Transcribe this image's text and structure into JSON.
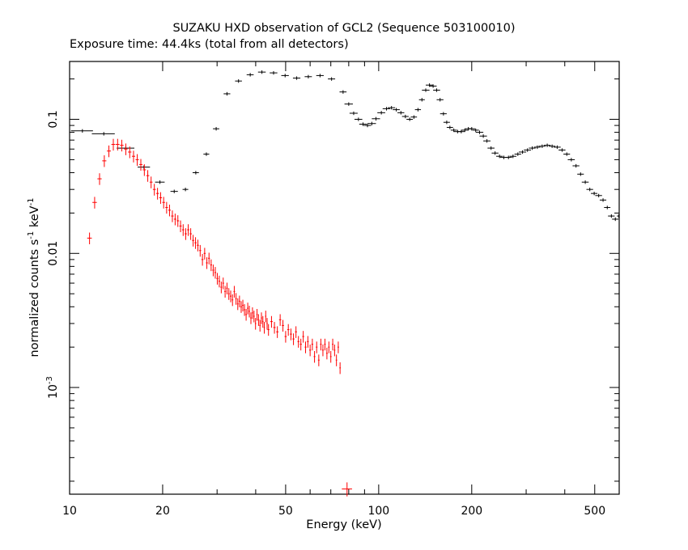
{
  "chart_data": {
    "type": "scatter",
    "title": "SUZAKU HXD observation of GCL2 (Sequence 503100010)",
    "subtitle": "Exposure time: 44.4ks (total from all detectors)",
    "xlabel": "Energy (keV)",
    "ylabel": "normalized counts s",
    "ylabel_sup1": "-1",
    "ylabel_mid": " keV",
    "ylabel_sup2": "-1",
    "x_scale": "log",
    "y_scale": "log",
    "xlim": [
      10,
      600
    ],
    "ylim": [
      0.00016,
      0.27
    ],
    "x_ticks": [
      {
        "value": 10,
        "label": "10"
      },
      {
        "value": 20,
        "label": "20"
      },
      {
        "value": 50,
        "label": "50"
      },
      {
        "value": 100,
        "label": "100"
      },
      {
        "value": 200,
        "label": "200"
      },
      {
        "value": 500,
        "label": "500"
      }
    ],
    "y_ticks": [
      {
        "value": 0.1,
        "base": "0.1",
        "exp": ""
      },
      {
        "value": 0.01,
        "base": "0.01",
        "exp": ""
      },
      {
        "value": 0.001,
        "base": "10",
        "exp": "-3"
      }
    ],
    "grid": false,
    "series": [
      {
        "color": "#000000",
        "points": [
          [
            11.0,
            0.082,
            0.9
          ],
          [
            12.9,
            0.078,
            1.1
          ],
          [
            15.2,
            0.061,
            1.0
          ],
          [
            17.4,
            0.044,
            0.8
          ],
          [
            19.6,
            0.034,
            0.7
          ],
          [
            21.8,
            0.029,
            0.6
          ],
          [
            23.7,
            0.03,
            0.5
          ],
          [
            25.6,
            0.04,
            0.6
          ],
          [
            27.7,
            0.055,
            0.6
          ],
          [
            29.8,
            0.085,
            0.7
          ],
          [
            32.3,
            0.155,
            0.8
          ],
          [
            35.2,
            0.193,
            0.9
          ],
          [
            38.4,
            0.215,
            1.0
          ],
          [
            41.9,
            0.225,
            1.2
          ],
          [
            45.7,
            0.222,
            1.3
          ],
          [
            49.8,
            0.212,
            1.4
          ],
          [
            54.3,
            0.203,
            1.5
          ],
          [
            59.2,
            0.208,
            1.6
          ],
          [
            64.6,
            0.212,
            1.8
          ],
          [
            70.4,
            0.2,
            1.9
          ],
          [
            76.7,
            0.16,
            2.0
          ],
          [
            80,
            0.13,
            2.5
          ],
          [
            83,
            0.111,
            2.5
          ],
          [
            86,
            0.1,
            2.5
          ],
          [
            89,
            0.092,
            2.5
          ],
          [
            92,
            0.09,
            2.5
          ],
          [
            95,
            0.093,
            3
          ],
          [
            98,
            0.101,
            3
          ],
          [
            102,
            0.112,
            3
          ],
          [
            106,
            0.12,
            3
          ],
          [
            110,
            0.122,
            3
          ],
          [
            114,
            0.118,
            3
          ],
          [
            118,
            0.112,
            3
          ],
          [
            122,
            0.105,
            3
          ],
          [
            126,
            0.1,
            3
          ],
          [
            130,
            0.104,
            3
          ],
          [
            134,
            0.118,
            3
          ],
          [
            138,
            0.14,
            3
          ],
          [
            142,
            0.165,
            4
          ],
          [
            146,
            0.18,
            4
          ],
          [
            150,
            0.177,
            4
          ],
          [
            154,
            0.165,
            4
          ],
          [
            158,
            0.14,
            4
          ],
          [
            162,
            0.11,
            4
          ],
          [
            166,
            0.095,
            4
          ],
          [
            170,
            0.087,
            4
          ],
          [
            175,
            0.083,
            4
          ],
          [
            180,
            0.081,
            5
          ],
          [
            185,
            0.081,
            5
          ],
          [
            190,
            0.083,
            5
          ],
          [
            195,
            0.085,
            5
          ],
          [
            200,
            0.085,
            5
          ],
          [
            206,
            0.083,
            5
          ],
          [
            212,
            0.08,
            6
          ],
          [
            218,
            0.075,
            6
          ],
          [
            224,
            0.069,
            6
          ],
          [
            231,
            0.061,
            6
          ],
          [
            238,
            0.056,
            6
          ],
          [
            246,
            0.053,
            6
          ],
          [
            254,
            0.052,
            7
          ],
          [
            263,
            0.052,
            7
          ],
          [
            272,
            0.053,
            7
          ],
          [
            282,
            0.055,
            7
          ],
          [
            292,
            0.057,
            8
          ],
          [
            303,
            0.059,
            8
          ],
          [
            314,
            0.061,
            8
          ],
          [
            326,
            0.062,
            8
          ],
          [
            338,
            0.063,
            9
          ],
          [
            351,
            0.064,
            9
          ],
          [
            364,
            0.063,
            9
          ],
          [
            378,
            0.062,
            10
          ],
          [
            392,
            0.059,
            10
          ],
          [
            406,
            0.055,
            10
          ],
          [
            420,
            0.05,
            11
          ],
          [
            435,
            0.045,
            11
          ],
          [
            450,
            0.039,
            11
          ],
          [
            466,
            0.034,
            12
          ],
          [
            482,
            0.03,
            12
          ],
          [
            498,
            0.028,
            12
          ],
          [
            515,
            0.027,
            13
          ],
          [
            532,
            0.025,
            13
          ],
          [
            549,
            0.022,
            13
          ],
          [
            566,
            0.019,
            14
          ],
          [
            583,
            0.018,
            14
          ],
          [
            598,
            0.019,
            8
          ]
        ]
      },
      {
        "color": "#ff0000",
        "points": [
          [
            11.6,
            0.013,
            0.2
          ],
          [
            12.05,
            0.024,
            0.2
          ],
          [
            12.5,
            0.036,
            0.2
          ],
          [
            12.95,
            0.049,
            0.2
          ],
          [
            13.4,
            0.058,
            0.2
          ],
          [
            13.85,
            0.065,
            0.2
          ],
          [
            14.3,
            0.065,
            0.2
          ],
          [
            14.75,
            0.064,
            0.2
          ],
          [
            15.2,
            0.06,
            0.2
          ],
          [
            15.65,
            0.057,
            0.2
          ],
          [
            16.1,
            0.053,
            0.2
          ],
          [
            16.55,
            0.05,
            0.2
          ],
          [
            17.0,
            0.046,
            0.2
          ],
          [
            17.45,
            0.042,
            0.2
          ],
          [
            17.9,
            0.038,
            0.2
          ],
          [
            18.35,
            0.034,
            0.2
          ],
          [
            18.8,
            0.03,
            0.2
          ],
          [
            19.25,
            0.028,
            0.2
          ],
          [
            19.7,
            0.026,
            0.2
          ],
          [
            20.15,
            0.024,
            0.2
          ],
          [
            20.6,
            0.022,
            0.2
          ],
          [
            21.05,
            0.021,
            0.2
          ],
          [
            21.5,
            0.019,
            0.2
          ],
          [
            21.95,
            0.018,
            0.2
          ],
          [
            22.4,
            0.0175,
            0.2
          ],
          [
            22.85,
            0.016,
            0.2
          ],
          [
            23.3,
            0.015,
            0.2
          ],
          [
            23.75,
            0.014,
            0.2
          ],
          [
            24.2,
            0.015,
            0.2
          ],
          [
            24.65,
            0.014,
            0.2
          ],
          [
            25.1,
            0.0125,
            0.2
          ],
          [
            25.55,
            0.012,
            0.2
          ],
          [
            26.0,
            0.0115,
            0.2
          ],
          [
            26.45,
            0.0105,
            0.2
          ],
          [
            26.9,
            0.009,
            0.2
          ],
          [
            27.35,
            0.01,
            0.2
          ],
          [
            27.8,
            0.0085,
            0.2
          ],
          [
            28.25,
            0.0092,
            0.2
          ],
          [
            28.7,
            0.0082,
            0.2
          ],
          [
            29.15,
            0.0075,
            0.2
          ],
          [
            29.6,
            0.0072,
            0.2
          ],
          [
            30.05,
            0.0065,
            0.2
          ],
          [
            30.5,
            0.0062,
            0.2
          ],
          [
            30.95,
            0.0056,
            0.2
          ],
          [
            31.4,
            0.006,
            0.2
          ],
          [
            31.85,
            0.0052,
            0.2
          ],
          [
            32.3,
            0.0055,
            0.2
          ],
          [
            32.75,
            0.005,
            0.2
          ],
          [
            33.2,
            0.0048,
            0.2
          ],
          [
            33.65,
            0.0045,
            0.2
          ],
          [
            34.1,
            0.0052,
            0.2
          ],
          [
            34.55,
            0.0046,
            0.2
          ],
          [
            35.0,
            0.0042,
            0.2
          ],
          [
            35.45,
            0.0044,
            0.2
          ],
          [
            35.9,
            0.004,
            0.2
          ],
          [
            36.35,
            0.0041,
            0.2
          ],
          [
            36.8,
            0.0038,
            0.2
          ],
          [
            37.25,
            0.0035,
            0.2
          ],
          [
            37.7,
            0.0039,
            0.2
          ],
          [
            38.15,
            0.0037,
            0.2
          ],
          [
            38.6,
            0.0033,
            0.2
          ],
          [
            39.05,
            0.0036,
            0.2
          ],
          [
            39.5,
            0.0034,
            0.2
          ],
          [
            39.95,
            0.003,
            0.2
          ],
          [
            40.4,
            0.0035,
            0.2
          ],
          [
            40.85,
            0.0032,
            0.2
          ],
          [
            41.3,
            0.0029,
            0.2
          ],
          [
            41.75,
            0.0033,
            0.2
          ],
          [
            42.2,
            0.0031,
            0.2
          ],
          [
            42.65,
            0.0028,
            0.2
          ],
          [
            43.1,
            0.0034,
            0.2
          ],
          [
            43.55,
            0.003,
            0.2
          ],
          [
            44.0,
            0.0027,
            0.3
          ],
          [
            45.0,
            0.0031,
            0.4
          ],
          [
            46.0,
            0.0028,
            0.4
          ],
          [
            47.0,
            0.0026,
            0.4
          ],
          [
            48.0,
            0.0032,
            0.4
          ],
          [
            49.0,
            0.0029,
            0.4
          ],
          [
            50.0,
            0.0024,
            0.4
          ],
          [
            51.0,
            0.0027,
            0.4
          ],
          [
            52.0,
            0.0025,
            0.4
          ],
          [
            53.0,
            0.0023,
            0.4
          ],
          [
            54.0,
            0.0026,
            0.4
          ],
          [
            55.0,
            0.0022,
            0.4
          ],
          [
            56.0,
            0.0021,
            0.4
          ],
          [
            57.0,
            0.0024,
            0.4
          ],
          [
            58.0,
            0.002,
            0.4
          ],
          [
            59.0,
            0.0022,
            0.4
          ],
          [
            60.0,
            0.0019,
            0.4
          ],
          [
            61.0,
            0.0021,
            0.4
          ],
          [
            62.0,
            0.0017,
            0.4
          ],
          [
            63.0,
            0.002,
            0.4
          ],
          [
            64.0,
            0.0016,
            0.4
          ],
          [
            65.0,
            0.0021,
            0.4
          ],
          [
            66.0,
            0.0019,
            0.4
          ],
          [
            67.0,
            0.0021,
            0.4
          ],
          [
            68.0,
            0.0018,
            0.4
          ],
          [
            69.0,
            0.002,
            0.4
          ],
          [
            70.0,
            0.0017,
            0.4
          ],
          [
            71.0,
            0.0021,
            0.4
          ],
          [
            72.0,
            0.0019,
            0.4
          ],
          [
            73.0,
            0.0016,
            0.4
          ],
          [
            74.0,
            0.002,
            0.4
          ],
          [
            75.0,
            0.0014,
            0.4
          ],
          [
            79.0,
            0.000175,
            3.0
          ]
        ]
      }
    ]
  }
}
